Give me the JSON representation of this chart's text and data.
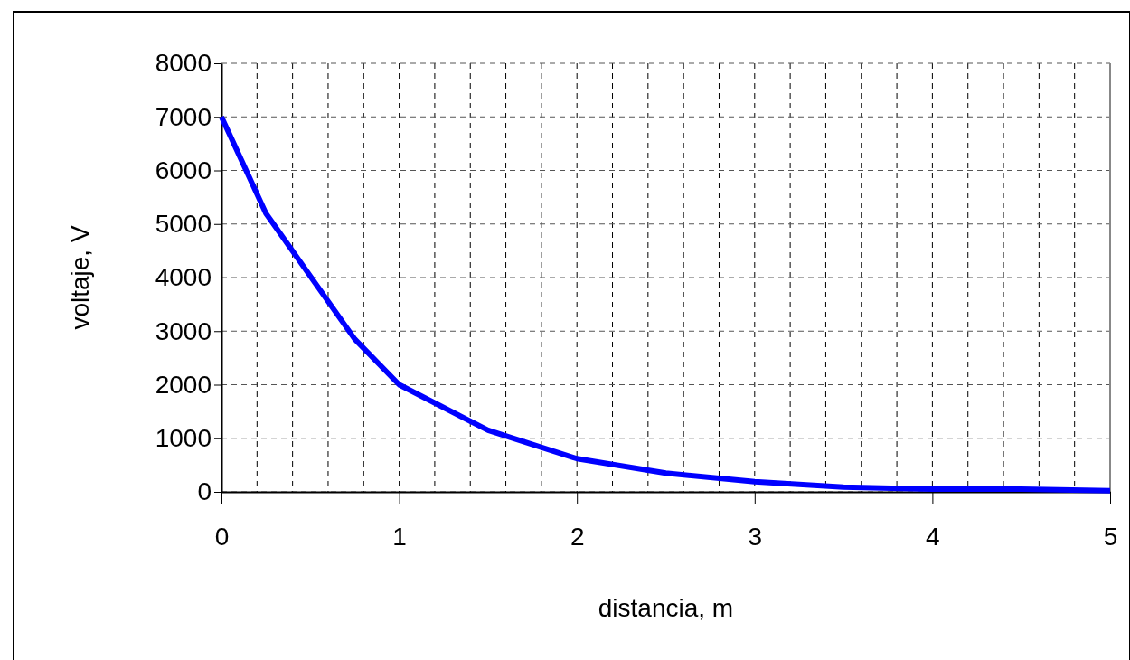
{
  "chart_data": {
    "type": "line",
    "xlabel": "distancia, m",
    "ylabel": "voltaje, V",
    "x": [
      0,
      0.25,
      0.75,
      1,
      1.5,
      2,
      2.5,
      3,
      3.5,
      4,
      4.5,
      5
    ],
    "series": [
      {
        "color": "#0000ff",
        "values": [
          7000,
          5200,
          2850,
          2000,
          1150,
          620,
          350,
          190,
          90,
          50,
          50,
          20
        ]
      }
    ],
    "xlim": [
      0,
      5
    ],
    "xticks": [
      0,
      {
        "value": 0.2,
        "label": null
      },
      {
        "value": 0.4,
        "label": null
      },
      {
        "value": 0.6,
        "label": null
      },
      {
        "value": 0.8,
        "label": null
      },
      1,
      {
        "value": 1.2,
        "label": null
      },
      {
        "value": 1.4,
        "label": null
      },
      {
        "value": 1.6,
        "label": null
      },
      {
        "value": 1.8,
        "label": null
      },
      2,
      {
        "value": 2.2,
        "label": null
      },
      {
        "value": 2.4,
        "label": null
      },
      {
        "value": 2.6,
        "label": null
      },
      {
        "value": 2.8,
        "label": null
      },
      3,
      {
        "value": 3.2,
        "label": null
      },
      {
        "value": 3.4,
        "label": null
      },
      {
        "value": 3.6,
        "label": null
      },
      {
        "value": 3.8,
        "label": null
      },
      4,
      {
        "value": 4.2,
        "label": null
      },
      {
        "value": 4.4,
        "label": null
      },
      {
        "value": 4.6,
        "label": null
      },
      {
        "value": 4.8,
        "label": null
      },
      5
    ],
    "ylim": [
      0,
      8000
    ],
    "yticks": [
      0,
      1000,
      2000,
      3000,
      4000,
      5000,
      6000,
      7000,
      8000
    ],
    "grid": true,
    "marker": "none",
    "line_style": "solid"
  }
}
